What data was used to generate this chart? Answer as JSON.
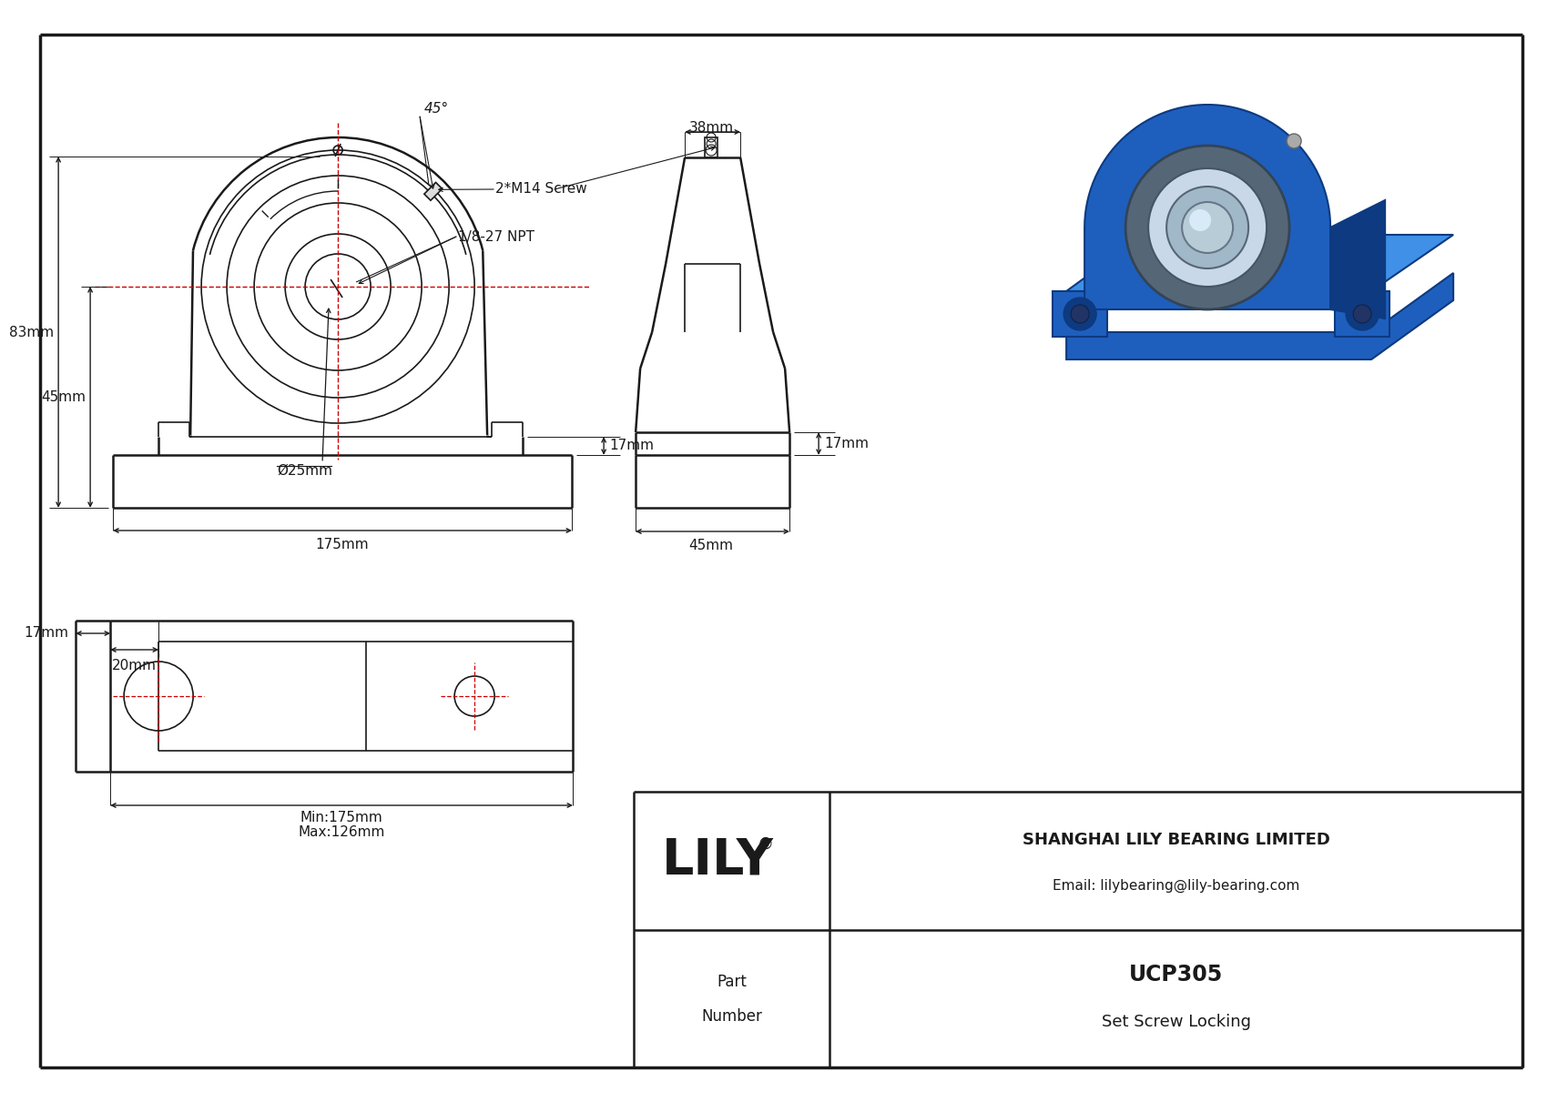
{
  "bg_color": "#ffffff",
  "line_color": "#1a1a1a",
  "red_color": "#cc0000",
  "blue_main": "#1e5fbe",
  "blue_dark": "#0d3a80",
  "blue_mid": "#2870d0",
  "blue_light": "#4090e8",
  "gray_bearing": "#8899aa",
  "gray_light": "#c8d8e8",
  "gray_inner": "#a0b8c8",
  "silver": "#d0dce8",
  "dim_83": "83mm",
  "dim_45": "45mm",
  "dim_175": "175mm",
  "dim_bore": "Ø25mm",
  "dim_angle": "45°",
  "dim_npt": "1/8-27 NPT",
  "dim_screw": "2*M14 Screw",
  "dim_38": "38mm",
  "dim_17": "17mm",
  "dim_45s": "45mm",
  "dim_20": "20mm",
  "dim_17t": "17mm",
  "dim_min": "Min:175mm",
  "dim_max": "Max:126mm",
  "logo": "LILY",
  "reg": "®",
  "company": "SHANGHAI LILY BEARING LIMITED",
  "email": "Email: lilybearing@lily-bearing.com",
  "part_label1": "Part",
  "part_label2": "Number",
  "part_number": "UCP305",
  "part_type": "Set Screw Locking"
}
